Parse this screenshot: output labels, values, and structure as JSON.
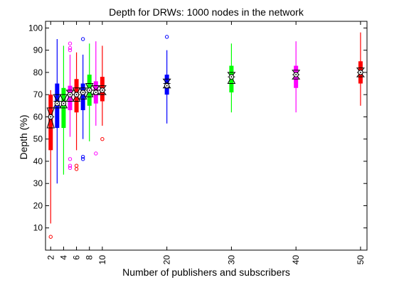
{
  "chart_data": {
    "type": "box",
    "title": "Depth for DRWs: 1000 nodes in the network",
    "xlabel": "Number of publishers and subscribers",
    "ylabel": "Depth (%)",
    "ylim": [
      0,
      103
    ],
    "xlim": [
      1.2,
      51
    ],
    "grid": false,
    "x_ticks": [
      2,
      4,
      6,
      8,
      10,
      20,
      30,
      40,
      50
    ],
    "y_ticks": [
      10,
      20,
      30,
      40,
      50,
      60,
      70,
      80,
      90,
      100
    ],
    "boxes": [
      {
        "x": 2,
        "color": "#ff0000",
        "whisker_low": 12,
        "q1": 45,
        "median": 60,
        "q3": 70,
        "whisker_high": 72,
        "mean": 60,
        "notch_low": 55,
        "notch_high": 64,
        "outliers": [
          6
        ]
      },
      {
        "x": 3,
        "color": "#0000ff",
        "whisker_low": 30,
        "q1": 55,
        "median": 67,
        "q3": 75,
        "whisker_high": 95,
        "mean": 66,
        "notch_low": 64,
        "notch_high": 70,
        "outliers": []
      },
      {
        "x": 4,
        "color": "#00ff00",
        "whisker_low": 34,
        "q1": 55,
        "median": 67,
        "q3": 73,
        "whisker_high": 92,
        "mean": 66,
        "notch_low": 64,
        "notch_high": 70,
        "outliers": []
      },
      {
        "x": 5,
        "color": "#ff00ff",
        "whisker_low": 51,
        "q1": 63,
        "median": 70,
        "q3": 74,
        "whisker_high": 88,
        "mean": 70,
        "notch_low": 67,
        "notch_high": 72,
        "outliers": [
          93,
          91,
          90,
          41,
          38,
          37
        ]
      },
      {
        "x": 6,
        "color": "#ff0000",
        "whisker_low": 45,
        "q1": 62,
        "median": 70,
        "q3": 77,
        "whisker_high": 89,
        "mean": 70,
        "notch_low": 67,
        "notch_high": 73,
        "outliers": [
          38,
          36.5
        ]
      },
      {
        "x": 7,
        "color": "#0000ff",
        "whisker_low": 50,
        "q1": 63,
        "median": 71,
        "q3": 75,
        "whisker_high": 88,
        "mean": 71,
        "notch_low": 68,
        "notch_high": 73,
        "outliers": [
          95,
          42,
          41
        ]
      },
      {
        "x": 8,
        "color": "#00ff00",
        "whisker_low": 49,
        "q1": 65,
        "median": 72,
        "q3": 79,
        "whisker_high": 93,
        "mean": 72,
        "notch_low": 69,
        "notch_high": 75,
        "outliers": []
      },
      {
        "x": 9,
        "color": "#ff00ff",
        "whisker_low": 56,
        "q1": 66,
        "median": 72,
        "q3": 76,
        "whisker_high": 94,
        "mean": 71,
        "notch_low": 70,
        "notch_high": 74,
        "outliers": [
          43.5
        ]
      },
      {
        "x": 10,
        "color": "#ff0000",
        "whisker_low": 56,
        "q1": 67,
        "median": 72,
        "q3": 78,
        "whisker_high": 92,
        "mean": 72,
        "notch_low": 70,
        "notch_high": 74,
        "outliers": [
          50
        ]
      },
      {
        "x": 20,
        "color": "#0000ff",
        "whisker_low": 57,
        "q1": 70,
        "median": 75,
        "q3": 79,
        "whisker_high": 90,
        "mean": 74,
        "notch_low": 73,
        "notch_high": 77,
        "outliers": [
          96
        ]
      },
      {
        "x": 30,
        "color": "#00ff00",
        "whisker_low": 62,
        "q1": 71,
        "median": 78,
        "q3": 83,
        "whisker_high": 93,
        "mean": 78,
        "notch_low": 75,
        "notch_high": 80,
        "outliers": []
      },
      {
        "x": 40,
        "color": "#ff00ff",
        "whisker_low": 62,
        "q1": 73,
        "median": 79,
        "q3": 83,
        "whisker_high": 94,
        "mean": 79,
        "notch_low": 77,
        "notch_high": 81,
        "outliers": []
      },
      {
        "x": 50,
        "color": "#ff0000",
        "whisker_low": 65,
        "q1": 75,
        "median": 80,
        "q3": 85,
        "whisker_high": 98,
        "mean": 80,
        "notch_low": 78,
        "notch_high": 82,
        "outliers": []
      }
    ]
  }
}
